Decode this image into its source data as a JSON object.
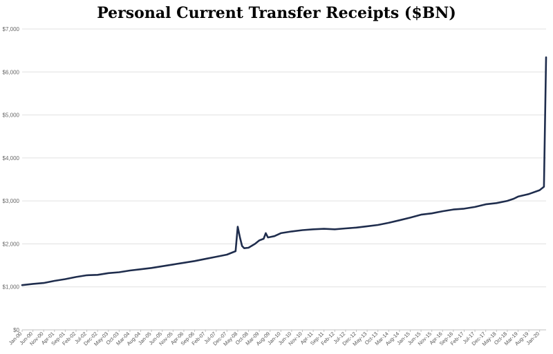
{
  "chart_data": {
    "type": "line",
    "title": "Personal Current Transfer Receipts ($BN)",
    "xlabel": "",
    "ylabel": "",
    "ylim": [
      0,
      7000
    ],
    "y_ticks": [
      0,
      1000,
      2000,
      3000,
      4000,
      5000,
      6000,
      7000
    ],
    "y_tick_labels": [
      "$0",
      "$1,000",
      "$2,000",
      "$3,000",
      "$4,000",
      "$5,000",
      "$6,000",
      "$7,000"
    ],
    "x_range": [
      "2000-01",
      "2020-04"
    ],
    "x_tick_labels": [
      "Jan-00",
      "Jun-00",
      "Nov-00",
      "Apr-01",
      "Sep-01",
      "Feb-02",
      "Jul-02",
      "Dec-02",
      "May-03",
      "Oct-03",
      "Mar-04",
      "Aug-04",
      "Jan-05",
      "Jun-05",
      "Nov-05",
      "Apr-06",
      "Sep-06",
      "Feb-07",
      "Jul-07",
      "Dec-07",
      "May-08",
      "Oct-08",
      "Mar-09",
      "Aug-09",
      "Jan-10",
      "Jun-10",
      "Nov-10",
      "Apr-11",
      "Sep-11",
      "Feb-12",
      "Jul-12",
      "Dec-12",
      "May-13",
      "Oct-13",
      "Mar-14",
      "Aug-14",
      "Jan-15",
      "Jun-15",
      "Nov-15",
      "Apr-16",
      "Sep-16",
      "Feb-17",
      "Jul-17",
      "Dec-17",
      "May-18",
      "Oct-18",
      "Mar-19",
      "Aug-19",
      "Jan-20"
    ],
    "grid": true,
    "series": [
      {
        "name": "",
        "color": "#1f2d4d",
        "points": [
          [
            "2000-01",
            1040
          ],
          [
            "2000-06",
            1070
          ],
          [
            "2000-11",
            1090
          ],
          [
            "2001-04",
            1140
          ],
          [
            "2001-09",
            1180
          ],
          [
            "2002-02",
            1230
          ],
          [
            "2002-07",
            1270
          ],
          [
            "2002-12",
            1280
          ],
          [
            "2003-05",
            1320
          ],
          [
            "2003-10",
            1340
          ],
          [
            "2004-03",
            1380
          ],
          [
            "2004-08",
            1410
          ],
          [
            "2005-01",
            1440
          ],
          [
            "2005-06",
            1480
          ],
          [
            "2005-11",
            1520
          ],
          [
            "2006-04",
            1560
          ],
          [
            "2006-09",
            1600
          ],
          [
            "2007-02",
            1650
          ],
          [
            "2007-07",
            1700
          ],
          [
            "2007-12",
            1750
          ],
          [
            "2008-04",
            1830
          ],
          [
            "2008-05",
            2400
          ],
          [
            "2008-06",
            2150
          ],
          [
            "2008-07",
            1950
          ],
          [
            "2008-08",
            1900
          ],
          [
            "2008-10",
            1910
          ],
          [
            "2009-01",
            2000
          ],
          [
            "2009-03",
            2080
          ],
          [
            "2009-05",
            2120
          ],
          [
            "2009-06",
            2250
          ],
          [
            "2009-07",
            2150
          ],
          [
            "2009-08",
            2160
          ],
          [
            "2009-10",
            2180
          ],
          [
            "2010-01",
            2250
          ],
          [
            "2010-06",
            2290
          ],
          [
            "2010-11",
            2320
          ],
          [
            "2011-04",
            2340
          ],
          [
            "2011-09",
            2350
          ],
          [
            "2012-02",
            2340
          ],
          [
            "2012-07",
            2360
          ],
          [
            "2012-12",
            2380
          ],
          [
            "2013-05",
            2410
          ],
          [
            "2013-10",
            2440
          ],
          [
            "2014-03",
            2490
          ],
          [
            "2014-08",
            2550
          ],
          [
            "2015-01",
            2610
          ],
          [
            "2015-06",
            2680
          ],
          [
            "2015-11",
            2710
          ],
          [
            "2016-04",
            2760
          ],
          [
            "2016-09",
            2800
          ],
          [
            "2017-02",
            2820
          ],
          [
            "2017-07",
            2860
          ],
          [
            "2017-12",
            2920
          ],
          [
            "2018-05",
            2950
          ],
          [
            "2018-10",
            3000
          ],
          [
            "2019-01",
            3050
          ],
          [
            "2019-03",
            3100
          ],
          [
            "2019-08",
            3160
          ],
          [
            "2020-01",
            3250
          ],
          [
            "2020-03",
            3330
          ],
          [
            "2020-04",
            6340
          ]
        ]
      }
    ]
  }
}
